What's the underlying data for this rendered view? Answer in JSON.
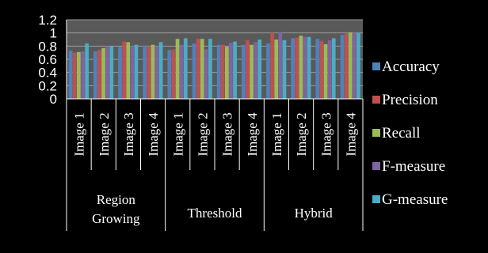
{
  "chart_data": {
    "type": "bar",
    "title": "",
    "xlabel": "",
    "ylabel": "",
    "ylim": [
      0,
      1.2
    ],
    "yticks": [
      "0",
      "0.2",
      "0.4",
      "0.6",
      "0.8",
      "1",
      "1.2"
    ],
    "grid": true,
    "legend_position": "right",
    "groups": [
      {
        "label_lines": [
          "Region",
          "Growing"
        ],
        "categories": [
          "Image 1",
          "Image 2",
          "Image 3",
          "Image 4"
        ]
      },
      {
        "label_lines": [
          "Threshold"
        ],
        "categories": [
          "Image 1",
          "Image 2",
          "Image 3",
          "Image 4"
        ]
      },
      {
        "label_lines": [
          "Hybrid"
        ],
        "categories": [
          "Image 1",
          "Image 2",
          "Image 3",
          "Image 4"
        ]
      }
    ],
    "categories": [
      "Image 1",
      "Image 2",
      "Image 3",
      "Image 4",
      "Image 1",
      "Image 2",
      "Image 3",
      "Image 4",
      "Image 1",
      "Image 2",
      "Image 3",
      "Image 4"
    ],
    "series": [
      {
        "name": "Accuracy",
        "color": "#4F81BD",
        "values": [
          0.73,
          0.72,
          0.79,
          0.81,
          0.74,
          0.84,
          0.82,
          0.82,
          0.84,
          0.92,
          0.91,
          0.97
        ]
      },
      {
        "name": "Precision",
        "color": "#C0504D",
        "values": [
          0.7,
          0.74,
          0.87,
          0.8,
          0.75,
          0.91,
          0.82,
          0.89,
          1.0,
          0.93,
          0.88,
          0.99
        ]
      },
      {
        "name": "Recall",
        "color": "#9BBB59",
        "values": [
          0.71,
          0.77,
          0.86,
          0.82,
          0.91,
          0.91,
          0.79,
          0.82,
          0.9,
          0.96,
          0.83,
          1.01
        ]
      },
      {
        "name": "F-measure",
        "color": "#8064A2",
        "values": [
          0.72,
          0.8,
          0.8,
          0.8,
          0.82,
          0.75,
          0.85,
          0.86,
          1.0,
          0.94,
          0.89,
          1.0
        ]
      },
      {
        "name": "G-measure",
        "color": "#4BACC6",
        "values": [
          0.84,
          0.8,
          0.82,
          0.86,
          0.92,
          0.91,
          0.87,
          0.9,
          0.89,
          0.94,
          0.92,
          1.0
        ]
      }
    ]
  }
}
